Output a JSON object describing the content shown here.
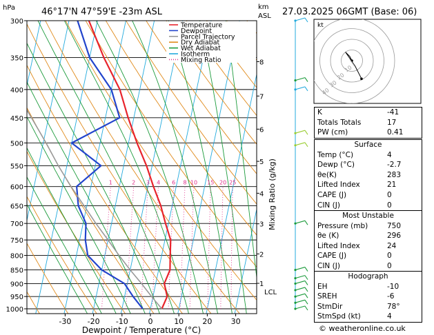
{
  "chart_data": {
    "type": "line",
    "title": "46°17'N  47°59'E  -23m  ASL",
    "date_title": "27.03.2025  06GMT  (Base: 06)",
    "pressure_unit": "hPa",
    "height_unit_top": "km",
    "height_unit_bottom": "ASL",
    "xlabel": "Dewpoint / Temperature (°C)",
    "mixing_label": "Mixing Ratio (g/kg)",
    "xlim": [
      -35,
      40
    ],
    "xticks": [
      "-30",
      "-20",
      "-10",
      "0",
      "10",
      "20",
      "30",
      "40"
    ],
    "pressure_levels": [
      "300",
      "350",
      "400",
      "450",
      "500",
      "550",
      "600",
      "650",
      "700",
      "750",
      "800",
      "850",
      "900",
      "950",
      "1000"
    ],
    "km_labels": [
      "8",
      "7",
      "6",
      "5",
      "4",
      "3",
      "2",
      "1"
    ],
    "lcl_label": "LCL",
    "mixing_ratio_labels": [
      "1",
      "2",
      "3",
      "4",
      "6",
      "8",
      "10",
      "15",
      "20",
      "25"
    ],
    "legend": [
      {
        "label": "Temperature",
        "color": "#e8232b"
      },
      {
        "label": "Dewpoint",
        "color": "#2244cc"
      },
      {
        "label": "Parcel Trajectory",
        "color": "#999999"
      },
      {
        "label": "Dry Adiabat",
        "color": "#e08a1a"
      },
      {
        "label": "Wet Adiabat",
        "color": "#1a9a3a"
      },
      {
        "label": "Isotherm",
        "color": "#22aadd"
      },
      {
        "label": "Mixing Ratio",
        "color": "#e0308a"
      }
    ],
    "series": [
      {
        "name": "Temperature",
        "points": [
          [
            1000,
            4
          ],
          [
            950,
            5
          ],
          [
            900,
            3
          ],
          [
            850,
            4
          ],
          [
            800,
            3
          ],
          [
            750,
            2
          ],
          [
            700,
            -1
          ],
          [
            650,
            -4
          ],
          [
            600,
            -8
          ],
          [
            550,
            -12
          ],
          [
            500,
            -17
          ],
          [
            450,
            -22
          ],
          [
            400,
            -27
          ],
          [
            350,
            -35
          ],
          [
            300,
            -43
          ]
        ]
      },
      {
        "name": "Dewpoint",
        "points": [
          [
            1000,
            -2.7
          ],
          [
            950,
            -7
          ],
          [
            900,
            -11
          ],
          [
            850,
            -20
          ],
          [
            800,
            -26
          ],
          [
            750,
            -28
          ],
          [
            700,
            -29
          ],
          [
            650,
            -33
          ],
          [
            600,
            -35
          ],
          [
            550,
            -28
          ],
          [
            500,
            -40
          ],
          [
            450,
            -25
          ],
          [
            400,
            -30
          ],
          [
            350,
            -40
          ],
          [
            300,
            -47
          ]
        ]
      },
      {
        "name": "Parcel Trajectory",
        "points": [
          [
            1000,
            4
          ],
          [
            950,
            -0.5
          ],
          [
            900,
            -5
          ],
          [
            850,
            -10
          ],
          [
            800,
            -15
          ],
          [
            750,
            -20
          ],
          [
            700,
            -25.5
          ],
          [
            650,
            -31
          ],
          [
            600,
            -37
          ],
          [
            550,
            -43
          ],
          [
            500,
            -49
          ],
          [
            450,
            -56
          ],
          [
            400,
            -64
          ],
          [
            350,
            -72
          ],
          [
            300,
            -80
          ]
        ]
      }
    ]
  },
  "wind_colors": {
    "low": "#22aadd",
    "mid": "#1a9a3a",
    "high": "#9acd32"
  },
  "hodograph": {
    "unit_label": "kt",
    "ring_labels": [
      "10",
      "20",
      "30",
      "40"
    ],
    "trace": [
      [
        0,
        0
      ],
      [
        -2,
        4
      ],
      [
        -6,
        8
      ],
      [
        3,
        -5
      ],
      [
        9,
        -17
      ]
    ]
  },
  "indices": {
    "rows": [
      {
        "label": "K",
        "value": "-41"
      },
      {
        "label": "Totals Totals",
        "value": "17"
      },
      {
        "label": "PW (cm)",
        "value": "0.41"
      }
    ]
  },
  "surface": {
    "title": "Surface",
    "rows": [
      {
        "label": "Temp (°C)",
        "value": "4"
      },
      {
        "label": "Dewp (°C)",
        "value": "-2.7"
      },
      {
        "label": "θe(K)",
        "value": "283"
      },
      {
        "label": "Lifted Index",
        "value": "21"
      },
      {
        "label": "CAPE (J)",
        "value": "0"
      },
      {
        "label": "CIN (J)",
        "value": "0"
      }
    ]
  },
  "most_unstable": {
    "title": "Most Unstable",
    "rows": [
      {
        "label": "Pressure (mb)",
        "value": "750"
      },
      {
        "label": "θe (K)",
        "value": "296"
      },
      {
        "label": "Lifted Index",
        "value": "24"
      },
      {
        "label": "CAPE (J)",
        "value": "0"
      },
      {
        "label": "CIN (J)",
        "value": "0"
      }
    ]
  },
  "hodograph_table": {
    "title": "Hodograph",
    "rows": [
      {
        "label": "EH",
        "value": "-10"
      },
      {
        "label": "SREH",
        "value": "-6"
      },
      {
        "label": "StmDir",
        "value": "78°"
      },
      {
        "label": "StmSpd (kt)",
        "value": "4"
      }
    ]
  },
  "footer": "© weatheronline.co.uk"
}
